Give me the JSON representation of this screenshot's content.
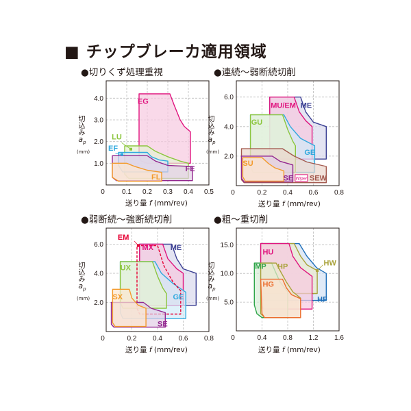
{
  "title": "■ チップブレーカ適用領域",
  "y_label": {
    "jp": "切込み",
    "var": "ap",
    "unit": "(mm)"
  },
  "x_label": {
    "jp": "送り量",
    "var": "f",
    "unit": "(mm/rev)"
  },
  "chart_data": [
    {
      "type": "area",
      "title": "●切りくず処理重視",
      "xlabel": "送り量 f (mm/rev)",
      "ylabel": "切込み ap (mm)",
      "xlim": [
        0,
        0.5
      ],
      "ylim": [
        0,
        4.8
      ],
      "grid": true,
      "xticks": [
        "0",
        "0.1",
        "0.2",
        "0.3",
        "0.4",
        "0.5"
      ],
      "xtick_values": [
        0,
        0.1,
        0.2,
        0.3,
        0.4,
        0.5
      ],
      "yticks": [
        "1.0",
        "2.0",
        "3.0",
        "4.0"
      ],
      "ytick_values": [
        1,
        2,
        3,
        4
      ],
      "regions": [
        {
          "name": "EG",
          "color": "#e0157f",
          "fill": "#f7c9df",
          "points": [
            [
              0.16,
              4.2
            ],
            [
              0.31,
              4.2
            ],
            [
              0.33,
              3.7
            ],
            [
              0.36,
              3.0
            ],
            [
              0.38,
              2.7
            ],
            [
              0.41,
              2.45
            ],
            [
              0.41,
              1.0
            ],
            [
              0.2,
              1.0
            ],
            [
              0.17,
              1.1
            ],
            [
              0.16,
              1.3
            ]
          ]
        },
        {
          "name": "LU",
          "color": "#8cc63e",
          "fill": "#e6f2d3",
          "points": [
            [
              0.09,
              1.8
            ],
            [
              0.2,
              1.8
            ],
            [
              0.24,
              1.55
            ],
            [
              0.3,
              1.3
            ],
            [
              0.36,
              1.1
            ],
            [
              0.4,
              1.0
            ],
            [
              0.4,
              0.3
            ],
            [
              0.11,
              0.3
            ],
            [
              0.09,
              0.5
            ]
          ]
        },
        {
          "name": "EF",
          "color": "#30a9de",
          "fill": "#d2ebf8",
          "points": [
            [
              0.06,
              1.5
            ],
            [
              0.2,
              1.5
            ],
            [
              0.22,
              1.3
            ],
            [
              0.26,
              1.15
            ],
            [
              0.3,
              1.1
            ],
            [
              0.3,
              0.6
            ],
            [
              0.08,
              0.6
            ],
            [
              0.06,
              0.9
            ]
          ]
        },
        {
          "name": "FE",
          "color": "#93278f",
          "fill": "#e2cfe5",
          "points": [
            [
              0.03,
              1.35
            ],
            [
              0.2,
              1.35
            ],
            [
              0.24,
              1.1
            ],
            [
              0.3,
              0.9
            ],
            [
              0.42,
              0.85
            ],
            [
              0.42,
              0.2
            ],
            [
              0.05,
              0.2
            ],
            [
              0.03,
              0.35
            ]
          ]
        },
        {
          "name": "FL",
          "color": "#f39a2b",
          "fill": "#fde7cf",
          "points": [
            [
              0.03,
              1.0
            ],
            [
              0.1,
              1.0
            ],
            [
              0.14,
              0.85
            ],
            [
              0.2,
              0.68
            ],
            [
              0.27,
              0.58
            ],
            [
              0.27,
              0.17
            ],
            [
              0.06,
              0.17
            ],
            [
              0.03,
              0.35
            ]
          ]
        }
      ]
    },
    {
      "type": "area",
      "title": "●連続～弱断続切削",
      "xlabel": "送り量 f (mm/rev)",
      "ylabel": "切込み ap (mm)",
      "xlim": [
        0,
        0.8
      ],
      "ylim": [
        0,
        7.1
      ],
      "grid": true,
      "xticks": [
        "0",
        "0.2",
        "0.4",
        "0.6",
        "0.8"
      ],
      "xtick_values": [
        0,
        0.2,
        0.4,
        0.6,
        0.8
      ],
      "yticks": [
        "2.0",
        "4.0",
        "6.0"
      ],
      "ytick_values": [
        2,
        4,
        6
      ],
      "regions": [
        {
          "name": "ME",
          "color": "#3b3f93",
          "fill": "#d9d8ec",
          "points": [
            [
              0.26,
              6.0
            ],
            [
              0.5,
              6.0
            ],
            [
              0.54,
              5.0
            ],
            [
              0.6,
              4.3
            ],
            [
              0.7,
              4.0
            ],
            [
              0.7,
              1.8
            ],
            [
              0.26,
              1.8
            ]
          ]
        },
        {
          "name": "MU/EM",
          "color": "#e0157f",
          "fill": "#f7c9df",
          "points": [
            [
              0.26,
              6.0
            ],
            [
              0.45,
              6.0
            ],
            [
              0.49,
              5.0
            ],
            [
              0.54,
              4.4
            ],
            [
              0.59,
              4.0
            ],
            [
              0.59,
              1.8
            ],
            [
              0.26,
              1.8
            ]
          ]
        },
        {
          "name": "GE",
          "color": "#30a9de",
          "fill": "#d2ebf8",
          "points": [
            [
              0.11,
              4.8
            ],
            [
              0.37,
              4.8
            ],
            [
              0.42,
              4.0
            ],
            [
              0.5,
              3.2
            ],
            [
              0.61,
              2.7
            ],
            [
              0.61,
              0.9
            ],
            [
              0.13,
              0.9
            ],
            [
              0.11,
              1.3
            ]
          ]
        },
        {
          "name": "GU",
          "color": "#8cc63e",
          "fill": "#e6f2d3",
          "points": [
            [
              0.11,
              4.8
            ],
            [
              0.36,
              4.8
            ],
            [
              0.4,
              3.8
            ],
            [
              0.44,
              3.0
            ],
            [
              0.46,
              2.7
            ],
            [
              0.46,
              0.9
            ],
            [
              0.13,
              0.9
            ],
            [
              0.11,
              1.3
            ]
          ]
        },
        {
          "name": "SEW",
          "color": "#a35a4f",
          "fill": "#ebd5cc",
          "points": [
            [
              0.04,
              2.5
            ],
            [
              0.36,
              2.5
            ],
            [
              0.45,
              2.0
            ],
            [
              0.55,
              1.6
            ],
            [
              0.7,
              1.3
            ],
            [
              0.7,
              0.2
            ],
            [
              0.06,
              0.2
            ],
            [
              0.04,
              0.4
            ]
          ]
        },
        {
          "name": "SE",
          "color": "#93278f",
          "fill": "#e2cfe5",
          "points": [
            [
              0.04,
              2.0
            ],
            [
              0.28,
              2.0
            ],
            [
              0.34,
              1.65
            ],
            [
              0.44,
              1.4
            ],
            [
              0.44,
              0.25
            ],
            [
              0.06,
              0.25
            ],
            [
              0.04,
              0.5
            ]
          ]
        },
        {
          "name": "SU",
          "color": "#f39a2b",
          "fill": "#fde7cf",
          "points": [
            [
              0.05,
              1.9
            ],
            [
              0.2,
              1.9
            ],
            [
              0.25,
              1.5
            ],
            [
              0.3,
              1.2
            ],
            [
              0.37,
              1.0
            ],
            [
              0.37,
              0.3
            ],
            [
              0.07,
              0.3
            ],
            [
              0.05,
              0.6
            ]
          ]
        }
      ],
      "badge": "Wiper"
    },
    {
      "type": "area",
      "title": "●弱断続～強断続切削",
      "xlabel": "送り量 f (mm/rev)",
      "ylabel": "切込み ap (mm)",
      "xlim": [
        0,
        0.8
      ],
      "ylim": [
        0,
        7.1
      ],
      "grid": true,
      "xticks": [
        "0",
        "0.2",
        "0.4",
        "0.6",
        "0.8"
      ],
      "xtick_values": [
        0,
        0.2,
        0.4,
        0.6,
        0.8
      ],
      "yticks": [
        "2.0",
        "4.0",
        "6.0"
      ],
      "ytick_values": [
        2,
        4,
        6
      ],
      "regions": [
        {
          "name": "ME",
          "color": "#3b3f93",
          "fill": "#d9d8ec",
          "points": [
            [
              0.26,
              6.0
            ],
            [
              0.51,
              6.0
            ],
            [
              0.55,
              5.0
            ],
            [
              0.6,
              4.3
            ],
            [
              0.7,
              4.0
            ],
            [
              0.7,
              1.8
            ],
            [
              0.26,
              1.8
            ]
          ]
        },
        {
          "name": "MX",
          "color": "#e0157f",
          "fill": "#f7c9df",
          "points": [
            [
              0.26,
              6.0
            ],
            [
              0.44,
              6.0
            ],
            [
              0.48,
              5.0
            ],
            [
              0.55,
              4.3
            ],
            [
              0.6,
              4.0
            ],
            [
              0.6,
              1.8
            ],
            [
              0.26,
              1.8
            ]
          ]
        },
        {
          "name": "GE",
          "color": "#30a9de",
          "fill": "#d2ebf8",
          "points": [
            [
              0.11,
              4.8
            ],
            [
              0.38,
              4.8
            ],
            [
              0.43,
              4.0
            ],
            [
              0.52,
              3.3
            ],
            [
              0.62,
              2.7
            ],
            [
              0.62,
              0.9
            ],
            [
              0.13,
              0.9
            ],
            [
              0.11,
              1.3
            ]
          ]
        },
        {
          "name": "UX",
          "color": "#8cc63e",
          "fill": "#e6f2d3",
          "points": [
            [
              0.11,
              4.8
            ],
            [
              0.36,
              4.8
            ],
            [
              0.4,
              3.8
            ],
            [
              0.44,
              3.0
            ],
            [
              0.47,
              2.6
            ],
            [
              0.47,
              1.6
            ],
            [
              0.13,
              1.6
            ],
            [
              0.11,
              2.0
            ]
          ]
        },
        {
          "name": "EM",
          "color": "#e60033",
          "fill": "none",
          "points": [
            [
              0.24,
              5.9
            ],
            [
              0.4,
              5.9
            ],
            [
              0.45,
              4.5
            ],
            [
              0.52,
              3.4
            ],
            [
              0.58,
              2.8
            ],
            [
              0.58,
              1.2
            ],
            [
              0.26,
              1.2
            ],
            [
              0.24,
              1.6
            ]
          ]
        },
        {
          "name": "SE",
          "color": "#93278f",
          "fill": "#e2cfe5",
          "points": [
            [
              0.04,
              2.0
            ],
            [
              0.29,
              2.0
            ],
            [
              0.35,
              1.6
            ],
            [
              0.46,
              1.3
            ],
            [
              0.46,
              0.3
            ],
            [
              0.06,
              0.3
            ],
            [
              0.04,
              0.5
            ]
          ]
        },
        {
          "name": "SX",
          "color": "#f39a2b",
          "fill": "#fde7cf",
          "points": [
            [
              0.05,
              2.9
            ],
            [
              0.18,
              2.9
            ],
            [
              0.2,
              2.3
            ],
            [
              0.25,
              1.8
            ],
            [
              0.31,
              1.6
            ],
            [
              0.31,
              0.35
            ],
            [
              0.07,
              0.35
            ],
            [
              0.05,
              0.6
            ]
          ]
        }
      ]
    },
    {
      "type": "area",
      "title": "●粗～重切削",
      "xlabel": "送り量 f (mm/rev)",
      "ylabel": "切込み ap (mm)",
      "xlim": [
        0,
        1.6
      ],
      "ylim": [
        0,
        17.9
      ],
      "grid": true,
      "xticks": [
        "0",
        "0.4",
        "0.8",
        "1.2",
        "1.6"
      ],
      "xtick_values": [
        0,
        0.4,
        0.8,
        1.2,
        1.6
      ],
      "yticks": [
        "5.0",
        "10.0",
        "15.0"
      ],
      "ytick_values": [
        5,
        10,
        15
      ],
      "regions": [
        {
          "name": "HF",
          "color": "#1f6fb9",
          "fill": "#d3e1f3",
          "points": [
            [
              0.38,
              15.2
            ],
            [
              0.98,
              15.2
            ],
            [
              1.1,
              13.0
            ],
            [
              1.25,
              11.0
            ],
            [
              1.4,
              10.0
            ],
            [
              1.4,
              5.3
            ],
            [
              0.42,
              5.3
            ],
            [
              0.38,
              6.5
            ]
          ]
        },
        {
          "name": "HW",
          "color": "#a9a23a",
          "fill": "#ecebcf",
          "points": [
            [
              0.38,
              15.2
            ],
            [
              0.9,
              15.2
            ],
            [
              1.0,
              13.0
            ],
            [
              1.1,
              11.5
            ],
            [
              1.26,
              10.5
            ],
            [
              1.26,
              6.5
            ],
            [
              0.42,
              6.5
            ],
            [
              0.38,
              7.5
            ]
          ]
        },
        {
          "name": "HU",
          "color": "#e0157f",
          "fill": "#f7c9df",
          "points": [
            [
              0.38,
              15.2
            ],
            [
              0.82,
              15.2
            ],
            [
              0.88,
              13.0
            ],
            [
              1.0,
              11.0
            ],
            [
              1.18,
              9.5
            ],
            [
              1.18,
              3.8
            ],
            [
              0.42,
              3.8
            ],
            [
              0.38,
              5.0
            ]
          ]
        },
        {
          "name": "MP",
          "color": "#2ea549",
          "fill": "#d5ecd6",
          "points": [
            [
              0.28,
              11.8
            ],
            [
              0.55,
              11.8
            ],
            [
              0.6,
              10.5
            ],
            [
              0.68,
              8.5
            ],
            [
              0.8,
              6.8
            ],
            [
              0.8,
              2.3
            ],
            [
              0.4,
              2.3
            ],
            [
              0.32,
              3.0
            ],
            [
              0.28,
              4.5
            ]
          ]
        },
        {
          "name": "HP",
          "color": "#a9a23a",
          "fill": "#ecebcf",
          "points": [
            [
              0.38,
              11.8
            ],
            [
              0.62,
              11.8
            ],
            [
              0.68,
              10.5
            ],
            [
              0.78,
              8.5
            ],
            [
              0.88,
              6.8
            ],
            [
              1.0,
              5.7
            ],
            [
              1.0,
              2.3
            ],
            [
              0.44,
              2.3
            ],
            [
              0.38,
              3.0
            ]
          ]
        },
        {
          "name": "HG",
          "color": "#ec6d2d",
          "fill": "#fbe1d2",
          "points": [
            [
              0.38,
              9.0
            ],
            [
              0.72,
              9.0
            ],
            [
              0.78,
              7.5
            ],
            [
              0.86,
              6.3
            ],
            [
              1.0,
              5.6
            ],
            [
              1.0,
              2.3
            ],
            [
              0.44,
              2.3
            ],
            [
              0.4,
              3.0
            ]
          ]
        }
      ]
    }
  ]
}
